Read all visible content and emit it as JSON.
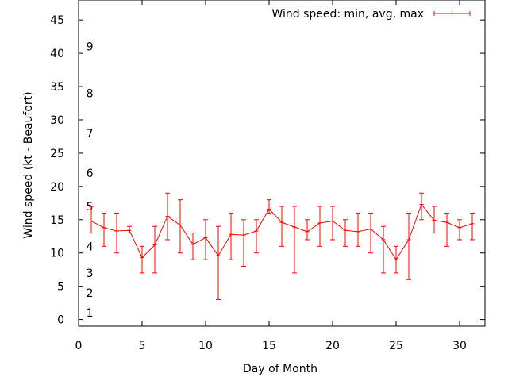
{
  "chart_data": {
    "type": "line",
    "xlabel": "Day of Month",
    "ylabel": "Wind speed (kt - Beaufort)",
    "xlim": [
      0,
      32
    ],
    "ylim": [
      -1,
      48
    ],
    "x_ticks": [
      "0",
      "5",
      "10",
      "15",
      "20",
      "25",
      "30"
    ],
    "y_ticks": [
      "0",
      "5",
      "10",
      "15",
      "20",
      "25",
      "30",
      "35",
      "40",
      "45"
    ],
    "grid": false,
    "legend_position": "top-right",
    "beaufort_scale": [
      {
        "label": "1",
        "y": 1
      },
      {
        "label": "2",
        "y": 4
      },
      {
        "label": "3",
        "y": 7
      },
      {
        "label": "4",
        "y": 11
      },
      {
        "label": "5",
        "y": 17
      },
      {
        "label": "6",
        "y": 22
      },
      {
        "label": "7",
        "y": 28
      },
      {
        "label": "8",
        "y": 34
      },
      {
        "label": "9",
        "y": 41
      }
    ],
    "series": [
      {
        "name": "Wind speed: min, avg, max",
        "color": "#ff0000",
        "x": [
          1,
          2,
          3,
          4,
          5,
          6,
          7,
          8,
          9,
          10,
          11,
          12,
          13,
          14,
          15,
          16,
          17,
          18,
          19,
          20,
          21,
          22,
          23,
          24,
          25,
          26,
          27,
          28,
          29,
          30,
          31
        ],
        "avg": [
          14.8,
          13.8,
          13.3,
          13.4,
          9.3,
          11.2,
          15.5,
          14.2,
          11.3,
          12.3,
          9.6,
          12.8,
          12.7,
          13.3,
          16.6,
          14.6,
          13.9,
          13.2,
          14.5,
          14.8,
          13.4,
          13.2,
          13.6,
          12.0,
          9.0,
          12.0,
          17.3,
          14.9,
          14.6,
          13.8,
          14.4
        ],
        "min": [
          13,
          11,
          10,
          13,
          7,
          7,
          12,
          10,
          9,
          9,
          3,
          9,
          8,
          10,
          16,
          11,
          7,
          12,
          11,
          12,
          11,
          11,
          10,
          7,
          7,
          6,
          15,
          13,
          11,
          12,
          12
        ],
        "max": [
          17,
          16,
          16,
          14,
          11,
          14,
          19,
          18,
          13,
          15,
          14,
          16,
          15,
          15,
          18,
          17,
          17,
          15,
          17,
          17,
          15,
          16,
          16,
          14,
          11,
          16,
          19,
          17,
          16,
          15,
          16
        ]
      }
    ]
  }
}
